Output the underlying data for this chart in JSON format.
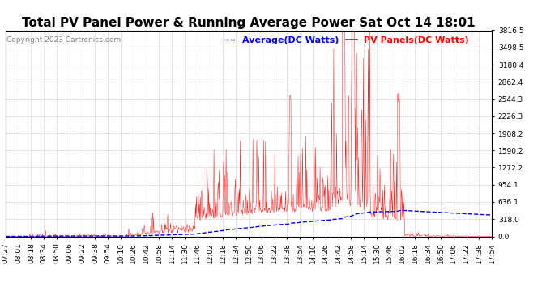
{
  "title": "Total PV Panel Power & Running Average Power Sat Oct 14 18:01",
  "copyright": "Copyright 2023 Cartronics.com",
  "legend_avg": "Average(DC Watts)",
  "legend_pv": "PV Panels(DC Watts)",
  "avg_color": "blue",
  "pv_color": "red",
  "background_color": "#ffffff",
  "grid_color": "#b0b0b0",
  "ylim": [
    0.0,
    3816.5
  ],
  "yticks": [
    0.0,
    318.0,
    636.1,
    954.1,
    1272.2,
    1590.2,
    1908.2,
    2226.3,
    2544.3,
    2862.4,
    3180.4,
    3498.5,
    3816.5
  ],
  "xtick_labels": [
    "07:27",
    "08:01",
    "08:18",
    "08:34",
    "08:50",
    "09:06",
    "09:22",
    "09:38",
    "09:54",
    "10:10",
    "10:26",
    "10:42",
    "10:58",
    "11:14",
    "11:30",
    "11:46",
    "12:02",
    "12:18",
    "12:34",
    "12:50",
    "13:06",
    "13:22",
    "13:38",
    "13:54",
    "14:10",
    "14:26",
    "14:42",
    "14:58",
    "15:14",
    "15:30",
    "15:46",
    "16:02",
    "16:18",
    "16:34",
    "16:50",
    "17:06",
    "17:22",
    "17:38",
    "17:54"
  ],
  "title_fontsize": 11,
  "axis_fontsize": 6.5,
  "copyright_fontsize": 6.5,
  "legend_fontsize": 8
}
